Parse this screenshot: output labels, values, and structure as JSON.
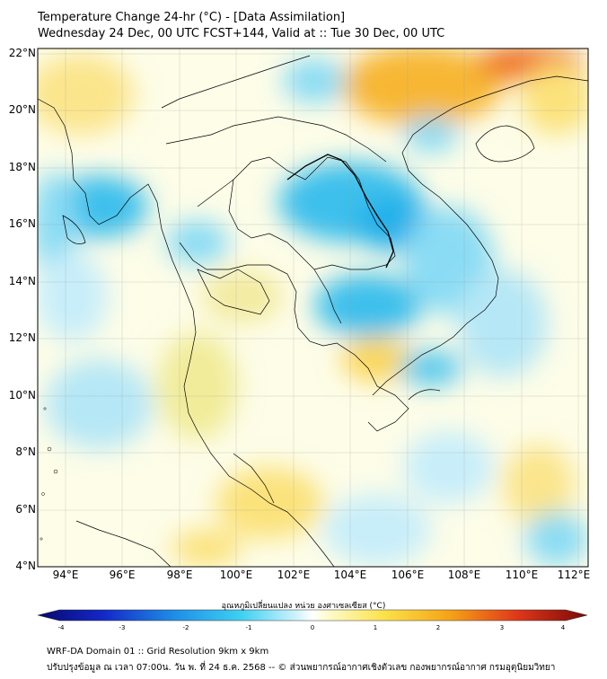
{
  "header": {
    "title": "Temperature Change 24-hr (°C) - [Data Assimilation]",
    "subtitle": "Wednesday 24 Dec, 00 UTC FCST+144, Valid at :: Tue 30 Dec, 00 UTC"
  },
  "map": {
    "lat_labels": [
      "22°N",
      "20°N",
      "18°N",
      "16°N",
      "14°N",
      "12°N",
      "10°N",
      "8°N",
      "6°N",
      "4°N"
    ],
    "lon_labels": [
      "94°E",
      "96°E",
      "98°E",
      "100°E",
      "102°E",
      "104°E",
      "106°E",
      "108°E",
      "110°E",
      "112°E"
    ],
    "gridlines": true,
    "colors": {
      "cool_strong": "#22b6ea",
      "cool_light": "#c8eefa",
      "neutral": "#fdfde8",
      "warm_light": "#fbe27a",
      "warm_strong": "#f59e1c",
      "hot": "#e8501a",
      "land_outline": "#000000"
    }
  },
  "colorbar": {
    "title": "อุณหภูมิเปลี่ยนแปลง หน่วย องศาเซลเซียส (°C)",
    "ticks": [
      "-4",
      "-3",
      "-2",
      "-1",
      "0",
      "1",
      "2",
      "3",
      "4"
    ],
    "min": -4,
    "max": 4
  },
  "footer": {
    "line1": "WRF-DA Domain 01 :: Grid Resolution 9km x 9km",
    "line2": "ปรับปรุงข้อมูล ณ เวลา 07:00น. วัน พ. ที่ 24 ธ.ค. 2568 -- © ส่วนพยากรณ์อากาศเชิงตัวเลข กองพยากรณ์อากาศ กรมอุตุนิยมวิทยา"
  }
}
